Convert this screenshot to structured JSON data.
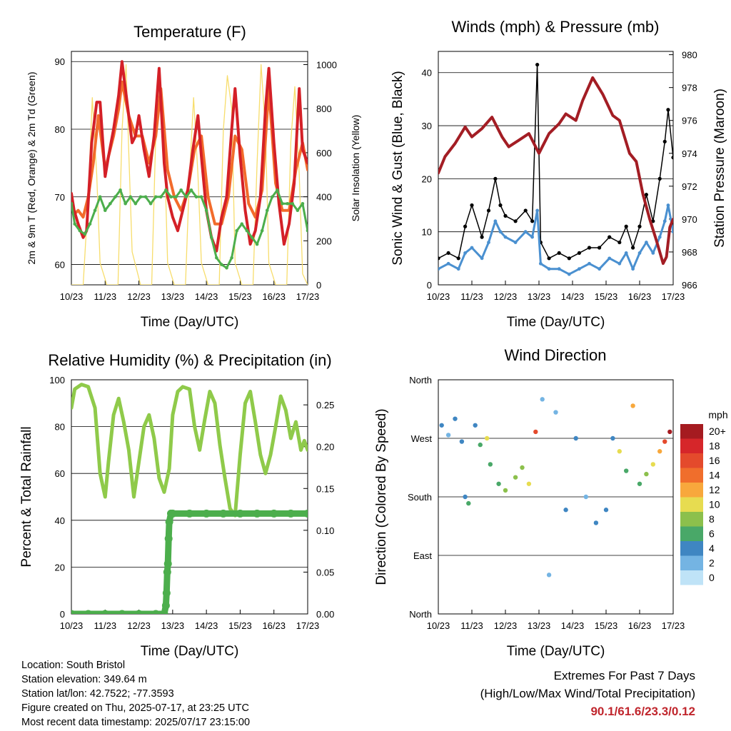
{
  "chart_data": [
    {
      "type": "line",
      "title": "Temperature (F)",
      "xlabel": "Time (Day/UTC)",
      "ylabel": "2m & 9m T (Red, Orange) & 2m Td (Green)",
      "y2label": "Solar Insolation (Yellow)",
      "x_ticks": [
        "10/23",
        "11/23",
        "12/23",
        "13/23",
        "14/23",
        "15/23",
        "16/23",
        "17/23"
      ],
      "ylim": [
        57,
        91.5
      ],
      "y_ticks": [
        60,
        70,
        80,
        90
      ],
      "y2lim": [
        0,
        1060
      ],
      "y2_ticks": [
        0,
        200,
        400,
        600,
        800,
        1000
      ],
      "grid_y": true,
      "colors": {
        "t2m": "#d42027",
        "t9m": "#f26b2b",
        "td2m": "#4cae4c",
        "solar": "#f7dd6c"
      },
      "series": [
        {
          "key": "t2m",
          "x": [
            0,
            0.08,
            0.2,
            0.35,
            0.45,
            0.6,
            0.75,
            0.85,
            1.0,
            1.1,
            1.25,
            1.4,
            1.5,
            1.65,
            1.8,
            1.9,
            2.0,
            2.15,
            2.3,
            2.45,
            2.6,
            2.75,
            2.85,
            3.0,
            3.15,
            3.3,
            3.45,
            3.6,
            3.75,
            3.85,
            4.0,
            4.15,
            4.3,
            4.45,
            4.6,
            4.75,
            4.85,
            5.0,
            5.15,
            5.3,
            5.45,
            5.6,
            5.75,
            5.85,
            6.0,
            6.15,
            6.3,
            6.45,
            6.6,
            6.75,
            6.85,
            7.0
          ],
          "y": [
            70.5,
            68,
            66,
            64,
            65,
            78,
            84,
            84,
            73,
            76,
            80,
            85,
            90,
            84,
            78,
            79,
            82,
            77,
            73,
            79,
            89,
            75,
            70,
            67,
            65,
            68,
            71,
            77,
            82,
            76,
            68,
            64,
            62,
            67,
            70,
            80,
            86,
            76,
            68,
            63,
            65,
            70,
            83,
            89,
            78,
            69,
            63,
            66,
            72,
            86,
            77,
            75
          ]
        },
        {
          "key": "t9m",
          "x": [
            0,
            0.1,
            0.2,
            0.35,
            0.5,
            0.65,
            0.8,
            1.0,
            1.25,
            1.4,
            1.5,
            1.7,
            1.9,
            2.1,
            2.3,
            2.5,
            2.65,
            2.85,
            3.05,
            3.25,
            3.45,
            3.65,
            3.85,
            4.05,
            4.25,
            4.45,
            4.65,
            4.85,
            5.05,
            5.25,
            5.45,
            5.65,
            5.85,
            6.05,
            6.25,
            6.45,
            6.65,
            6.85,
            7.0
          ],
          "y": [
            69,
            67.5,
            68,
            67,
            70,
            75,
            82,
            74,
            79,
            83,
            87,
            82,
            79,
            79,
            75,
            79,
            86,
            74,
            70,
            68,
            71,
            77,
            79,
            70,
            66,
            66,
            70,
            79,
            77,
            69,
            67,
            71,
            86,
            72,
            68,
            68,
            74,
            78,
            74
          ]
        },
        {
          "key": "td2m",
          "x": [
            0,
            0.1,
            0.25,
            0.4,
            0.55,
            0.7,
            0.85,
            1.0,
            1.15,
            1.3,
            1.45,
            1.6,
            1.75,
            1.9,
            2.05,
            2.2,
            2.35,
            2.5,
            2.65,
            2.8,
            2.95,
            3.1,
            3.25,
            3.4,
            3.55,
            3.7,
            3.85,
            4.0,
            4.15,
            4.3,
            4.45,
            4.6,
            4.75,
            4.9,
            5.05,
            5.2,
            5.35,
            5.5,
            5.65,
            5.8,
            5.95,
            6.1,
            6.25,
            6.4,
            6.55,
            6.7,
            6.85,
            7.0
          ],
          "y": [
            69,
            66,
            65,
            64.5,
            66,
            68,
            70,
            68,
            69,
            70,
            71,
            69,
            70,
            69,
            70,
            70,
            69,
            70,
            70,
            71,
            70,
            70,
            71,
            70,
            71,
            70,
            70,
            68,
            64,
            61,
            60,
            59.5,
            61,
            65,
            66,
            65,
            64,
            63,
            65,
            68,
            70,
            71,
            69,
            69,
            69,
            68,
            69,
            65
          ]
        },
        {
          "key": "solar",
          "x": [
            0,
            0.35,
            0.5,
            0.62,
            0.75,
            0.85,
            1.05,
            1.38,
            1.5,
            1.62,
            1.7,
            1.8,
            2.05,
            2.38,
            2.52,
            2.62,
            2.75,
            2.85,
            3.05,
            3.38,
            3.5,
            3.62,
            3.75,
            3.85,
            4.05,
            4.38,
            4.5,
            4.62,
            4.75,
            4.85,
            5.05,
            5.38,
            5.5,
            5.62,
            5.75,
            5.85,
            6.05,
            6.38,
            6.5,
            6.62,
            6.75,
            6.85,
            7.0
          ],
          "y": [
            0,
            0,
            400,
            850,
            500,
            100,
            0,
            0,
            700,
            1000,
            600,
            150,
            0,
            0,
            800,
            950,
            650,
            100,
            0,
            0,
            500,
            850,
            500,
            100,
            0,
            0,
            700,
            950,
            800,
            100,
            0,
            0,
            550,
            1000,
            700,
            100,
            0,
            0,
            650,
            900,
            500,
            50,
            0
          ]
        }
      ]
    },
    {
      "type": "scatter",
      "title": "Winds (mph) & Pressure (mb)",
      "xlabel": "Time (Day/UTC)",
      "ylabel": "Sonic Wind & Gust (Blue, Black)",
      "y2label": "Station Pressure (Maroon)",
      "x_ticks": [
        "10/23",
        "11/23",
        "12/23",
        "13/23",
        "14/23",
        "15/23",
        "16/23",
        "17/23"
      ],
      "ylim": [
        0,
        44
      ],
      "y_ticks": [
        0,
        10,
        20,
        30,
        40
      ],
      "y2lim": [
        966,
        980.2
      ],
      "y2_ticks": [
        966,
        968,
        970,
        972,
        974,
        976,
        978,
        980
      ],
      "grid_y": true,
      "colors": {
        "wind": "#4a90d0",
        "gust": "#000000",
        "pressure": "#a31d24"
      },
      "series": [
        {
          "key": "pressure",
          "x": [
            0,
            0.2,
            0.5,
            0.8,
            1.0,
            1.3,
            1.6,
            1.9,
            2.1,
            2.4,
            2.7,
            2.9,
            3.0,
            3.3,
            3.6,
            3.8,
            4.1,
            4.3,
            4.6,
            4.9,
            5.2,
            5.4,
            5.7,
            5.9,
            6.1,
            6.3,
            6.5,
            6.7,
            6.8,
            6.9,
            7.0
          ],
          "y": [
            972.8,
            973.8,
            974.6,
            975.6,
            975.0,
            975.5,
            976.2,
            975.0,
            974.4,
            974.8,
            975.2,
            974.4,
            974.0,
            975.2,
            975.8,
            976.4,
            976.0,
            977.2,
            978.6,
            977.6,
            976.3,
            976.0,
            974.0,
            973.5,
            971.5,
            970.0,
            968.7,
            967.3,
            967.7,
            969.5,
            970.0
          ]
        },
        {
          "key": "wind",
          "x": [
            0,
            0.3,
            0.6,
            0.8,
            1.0,
            1.3,
            1.5,
            1.7,
            1.85,
            2.0,
            2.3,
            2.6,
            2.8,
            2.95,
            3.05,
            3.3,
            3.6,
            3.9,
            4.2,
            4.5,
            4.8,
            5.1,
            5.4,
            5.6,
            5.8,
            6.0,
            6.2,
            6.4,
            6.6,
            6.75,
            6.85,
            7.0
          ],
          "y": [
            3,
            4,
            3,
            6,
            7,
            5,
            8,
            12,
            10,
            9,
            8,
            10,
            9,
            14,
            4,
            3,
            3,
            2,
            3,
            4,
            3,
            5,
            4,
            6,
            3,
            6,
            8,
            6,
            9,
            12,
            15,
            10
          ]
        },
        {
          "key": "gust",
          "x": [
            0,
            0.3,
            0.6,
            0.8,
            1.0,
            1.3,
            1.5,
            1.7,
            1.85,
            2.0,
            2.3,
            2.6,
            2.8,
            2.95,
            3.05,
            3.3,
            3.6,
            3.9,
            4.2,
            4.5,
            4.8,
            5.1,
            5.4,
            5.6,
            5.8,
            6.0,
            6.2,
            6.4,
            6.6,
            6.75,
            6.85,
            7.0
          ],
          "y": [
            5,
            6,
            5,
            11,
            15,
            9,
            14,
            20,
            15,
            13,
            12,
            14,
            12,
            41.5,
            8,
            5,
            6,
            5,
            6,
            7,
            7,
            9,
            8,
            11,
            7,
            11,
            17,
            12,
            20,
            27,
            33,
            24
          ]
        }
      ]
    },
    {
      "type": "line",
      "title": "Relative Humidity (%) & Precipitation (in)",
      "xlabel": "Time (Day/UTC)",
      "ylabel": "Percent & Total Rainfall",
      "x_ticks": [
        "10/23",
        "11/23",
        "12/23",
        "13/23",
        "14/23",
        "15/23",
        "16/23",
        "17/23"
      ],
      "ylim": [
        0,
        100
      ],
      "y_ticks": [
        0,
        20,
        40,
        60,
        80,
        100
      ],
      "y2lim": [
        0,
        0.28
      ],
      "y2_ticks": [
        "0.00",
        "0.05",
        "0.10",
        "0.15",
        "0.20",
        "0.25"
      ],
      "grid_y": true,
      "colors": {
        "rh": "#8fca4a",
        "precip": "#4cae4c"
      },
      "series": [
        {
          "key": "rh",
          "x": [
            0,
            0.1,
            0.3,
            0.5,
            0.7,
            0.85,
            1.0,
            1.1,
            1.25,
            1.4,
            1.55,
            1.7,
            1.85,
            2.0,
            2.15,
            2.3,
            2.45,
            2.6,
            2.75,
            2.9,
            3.0,
            3.15,
            3.3,
            3.5,
            3.65,
            3.8,
            3.95,
            4.1,
            4.25,
            4.4,
            4.55,
            4.7,
            4.85,
            5.0,
            5.15,
            5.3,
            5.45,
            5.6,
            5.75,
            5.9,
            6.05,
            6.2,
            6.35,
            6.5,
            6.65,
            6.8,
            6.9,
            7.0
          ],
          "y": [
            88,
            96,
            98,
            97,
            88,
            60,
            50,
            65,
            85,
            92,
            82,
            70,
            50,
            65,
            80,
            85,
            75,
            58,
            52,
            62,
            85,
            95,
            97,
            96,
            80,
            70,
            83,
            95,
            90,
            72,
            58,
            45,
            42,
            68,
            90,
            95,
            82,
            68,
            60,
            68,
            80,
            93,
            87,
            75,
            82,
            70,
            74,
            70
          ]
        },
        {
          "key": "precip",
          "x": [
            0,
            0.5,
            1.0,
            1.5,
            2.0,
            2.5,
            2.75,
            2.8,
            2.82,
            2.84,
            2.86,
            2.88,
            2.9,
            2.95,
            3.0,
            3.5,
            4.0,
            4.5,
            5.0,
            5.5,
            6.0,
            6.5,
            7.0
          ],
          "y": [
            0,
            0,
            0,
            0,
            0,
            0,
            0,
            0.01,
            0.025,
            0.05,
            0.06,
            0.09,
            0.11,
            0.12,
            0.12,
            0.12,
            0.12,
            0.12,
            0.12,
            0.12,
            0.12,
            0.12,
            0.12
          ]
        }
      ]
    },
    {
      "type": "scatter",
      "title": "Wind Direction",
      "xlabel": "Time (Day/UTC)",
      "ylabel": "Direction (Colored By Speed)",
      "x_ticks": [
        "10/23",
        "11/23",
        "12/23",
        "13/23",
        "14/23",
        "15/23",
        "16/23",
        "17/23"
      ],
      "y_ticks": [
        "North",
        "East",
        "South",
        "West",
        "North"
      ],
      "y_tick_values": [
        0,
        90,
        180,
        270,
        360
      ],
      "ylim": [
        0,
        360
      ],
      "grid_y": true,
      "legend": {
        "title": "mph",
        "placement": "right",
        "labels": [
          "20+",
          "18",
          "16",
          "14",
          "12",
          "10",
          "8",
          "6",
          "4",
          "2",
          "0"
        ],
        "colors": [
          "#a51b20",
          "#d6262a",
          "#e44a2c",
          "#f06e2c",
          "#f8a83c",
          "#e7dc50",
          "#8cc04c",
          "#49a868",
          "#3f86c2",
          "#74b4e3",
          "#bfe3f7"
        ]
      },
      "points": [
        {
          "x": 0.1,
          "y": 290,
          "speed": 4
        },
        {
          "x": 0.3,
          "y": 275,
          "speed": 3
        },
        {
          "x": 0.5,
          "y": 300,
          "speed": 4
        },
        {
          "x": 0.7,
          "y": 265,
          "speed": 5
        },
        {
          "x": 0.8,
          "y": 180,
          "speed": 4
        },
        {
          "x": 0.9,
          "y": 170,
          "speed": 6
        },
        {
          "x": 1.1,
          "y": 290,
          "speed": 5
        },
        {
          "x": 1.25,
          "y": 260,
          "speed": 6
        },
        {
          "x": 1.45,
          "y": 270,
          "speed": 11
        },
        {
          "x": 1.55,
          "y": 230,
          "speed": 7
        },
        {
          "x": 1.8,
          "y": 200,
          "speed": 6
        },
        {
          "x": 2.0,
          "y": 190,
          "speed": 8
        },
        {
          "x": 2.3,
          "y": 210,
          "speed": 8
        },
        {
          "x": 2.5,
          "y": 225,
          "speed": 9
        },
        {
          "x": 2.7,
          "y": 200,
          "speed": 11
        },
        {
          "x": 2.9,
          "y": 280,
          "speed": 16
        },
        {
          "x": 3.1,
          "y": 330,
          "speed": 2
        },
        {
          "x": 3.3,
          "y": 60,
          "speed": 2
        },
        {
          "x": 3.5,
          "y": 310,
          "speed": 3
        },
        {
          "x": 3.8,
          "y": 160,
          "speed": 4
        },
        {
          "x": 4.1,
          "y": 270,
          "speed": 4
        },
        {
          "x": 4.4,
          "y": 180,
          "speed": 3
        },
        {
          "x": 4.7,
          "y": 140,
          "speed": 4
        },
        {
          "x": 5.0,
          "y": 160,
          "speed": 5
        },
        {
          "x": 5.2,
          "y": 270,
          "speed": 5
        },
        {
          "x": 5.4,
          "y": 250,
          "speed": 10
        },
        {
          "x": 5.6,
          "y": 220,
          "speed": 7
        },
        {
          "x": 5.8,
          "y": 320,
          "speed": 12
        },
        {
          "x": 6.0,
          "y": 200,
          "speed": 6
        },
        {
          "x": 6.2,
          "y": 215,
          "speed": 8
        },
        {
          "x": 6.4,
          "y": 230,
          "speed": 10
        },
        {
          "x": 6.6,
          "y": 250,
          "speed": 12
        },
        {
          "x": 6.75,
          "y": 265,
          "speed": 16
        },
        {
          "x": 6.9,
          "y": 280,
          "speed": 20
        }
      ]
    }
  ],
  "info": {
    "location": "Location: South Bristol",
    "elevation": "Station elevation: 349.64 m",
    "latlon": "Station lat/lon: 42.7522; -77.3593",
    "created": "Figure created on Thu, 2025-07-17, at 23:25 UTC",
    "recent": "Most recent data timestamp: 2025/07/17 23:15:00"
  },
  "extremes": {
    "title": "Extremes For Past 7 Days",
    "subtitle": "(High/Low/Max Wind/Total Precipitation)",
    "values": "90.1/61.6/23.3/0.12"
  }
}
